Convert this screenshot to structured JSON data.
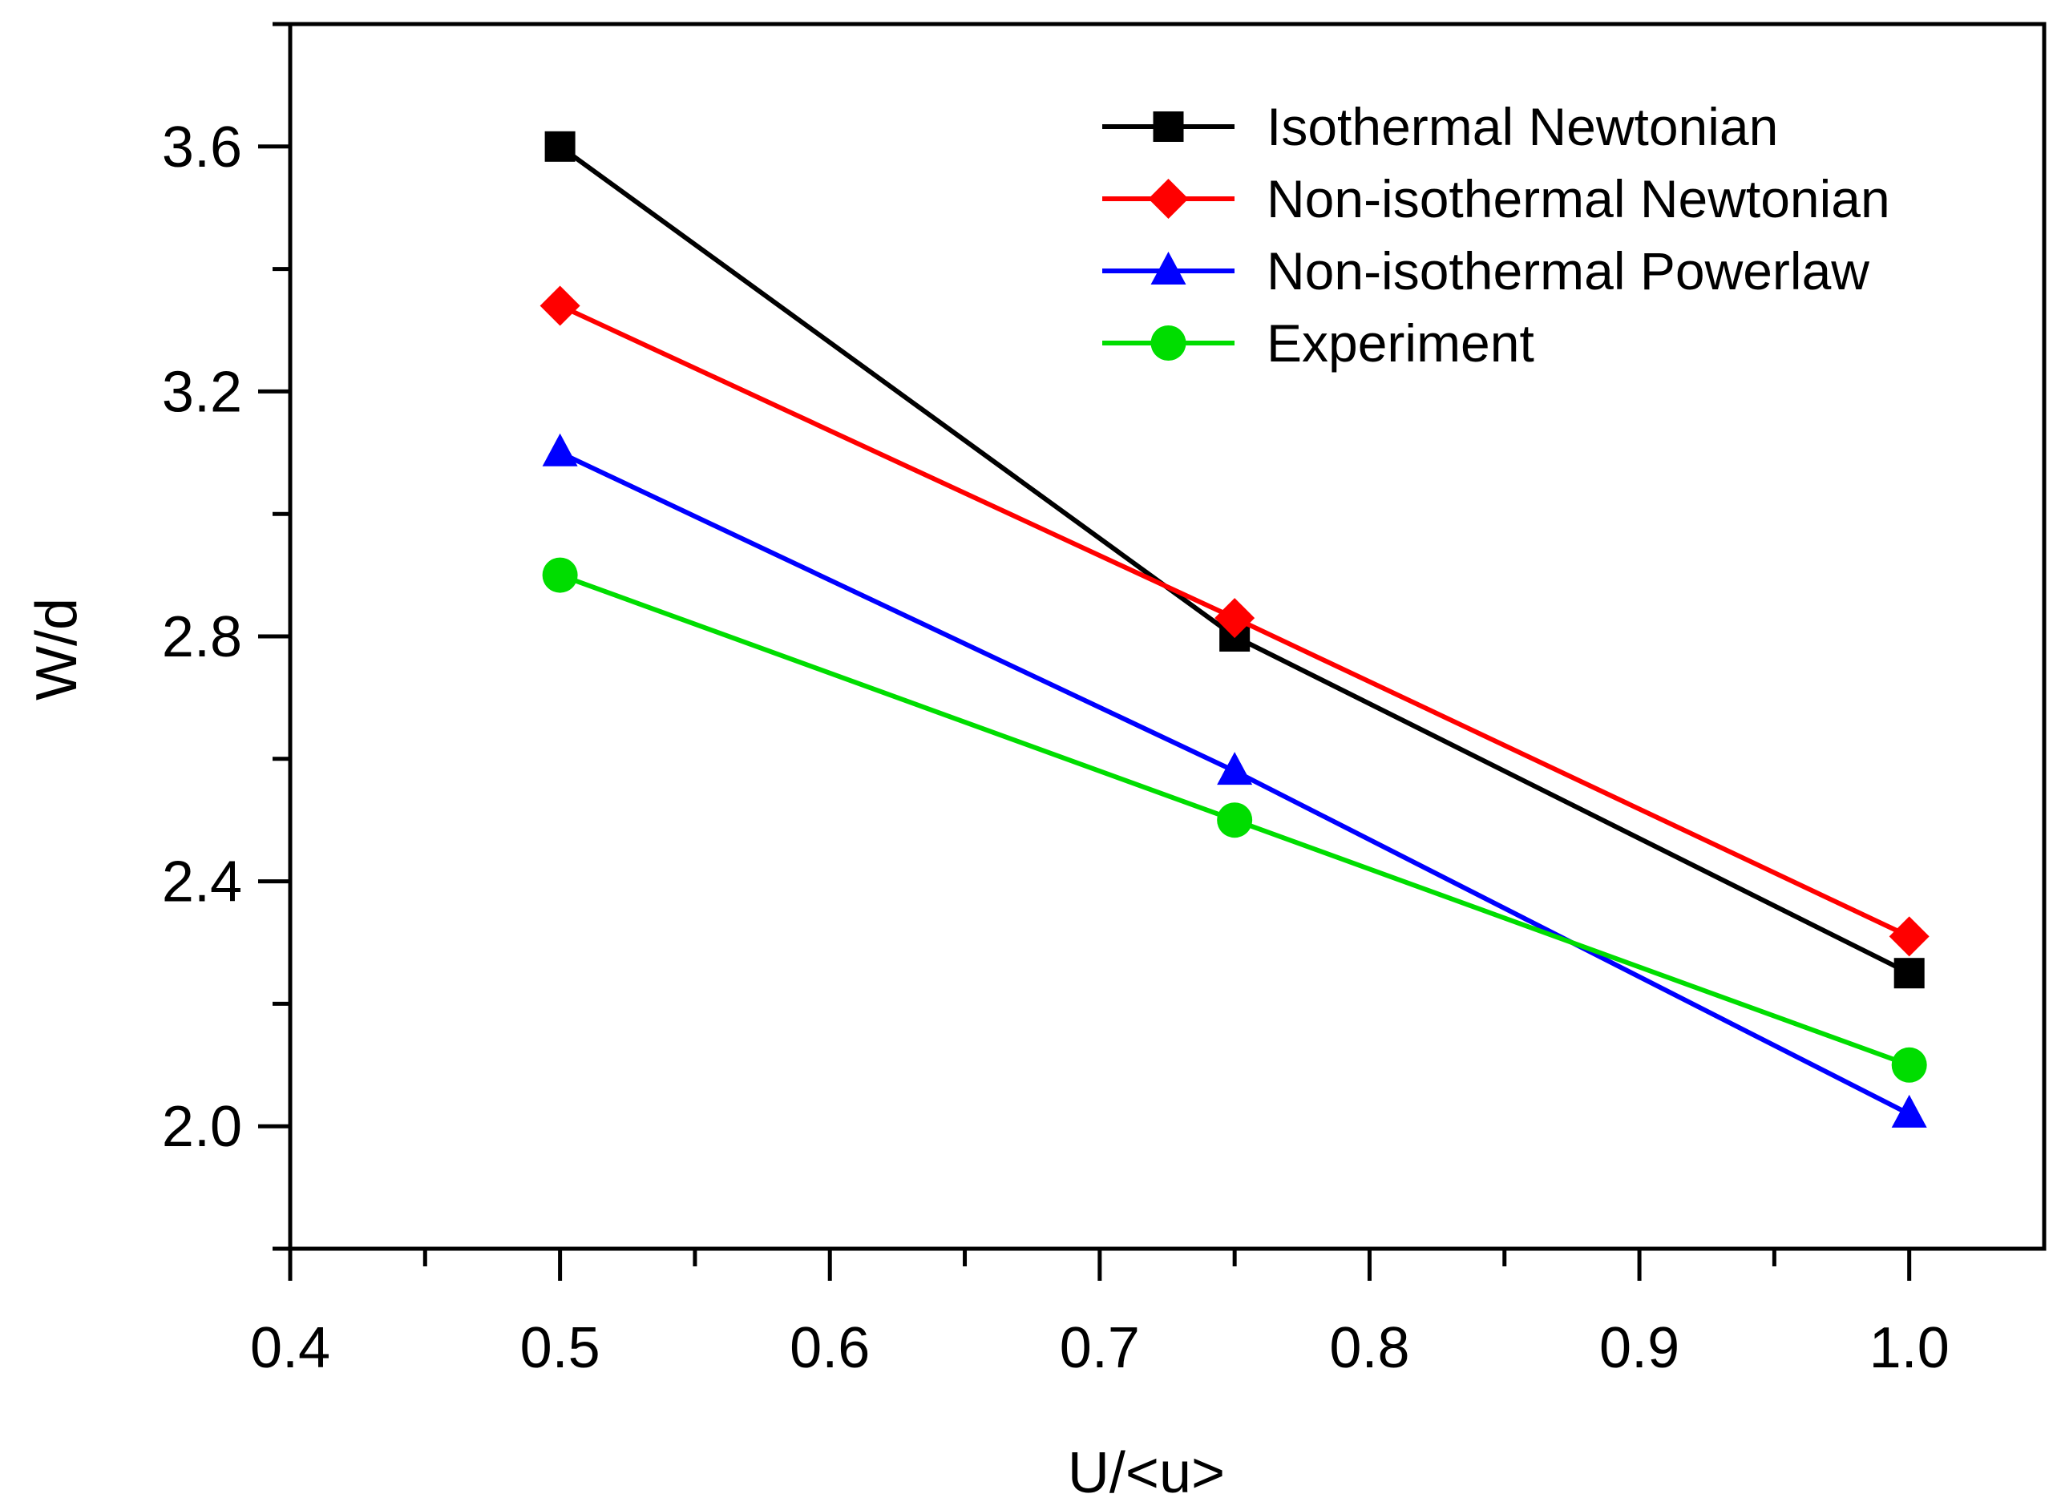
{
  "chart_data": {
    "type": "line",
    "title": "",
    "xlabel": "U/<u>",
    "ylabel": "W/d",
    "xlim": [
      0.4,
      1.05
    ],
    "ylim": [
      1.8,
      3.8
    ],
    "grid": false,
    "legend_position": "top-right",
    "x_ticks": [
      {
        "value": 0.4,
        "label": "0.4"
      },
      {
        "value": 0.5,
        "label": "0.5"
      },
      {
        "value": 0.6,
        "label": "0.6"
      },
      {
        "value": 0.7,
        "label": "0.7"
      },
      {
        "value": 0.8,
        "label": "0.8"
      },
      {
        "value": 0.9,
        "label": "0.9"
      },
      {
        "value": 1.0,
        "label": "1.0"
      }
    ],
    "y_ticks": [
      {
        "value": 2.0,
        "label": "2.0"
      },
      {
        "value": 2.4,
        "label": "2.4"
      },
      {
        "value": 2.8,
        "label": "2.8"
      },
      {
        "value": 3.2,
        "label": "3.2"
      },
      {
        "value": 3.6,
        "label": "3.6"
      }
    ],
    "series": [
      {
        "name": "Isothermal Newtonian",
        "color": "#000000",
        "marker": "square",
        "x": [
          0.5,
          0.75,
          1.0
        ],
        "values": [
          3.6,
          2.8,
          2.25
        ]
      },
      {
        "name": "Non-isothermal Newtonian",
        "color": "#ff0000",
        "marker": "diamond",
        "x": [
          0.5,
          0.75,
          1.0
        ],
        "values": [
          3.34,
          2.83,
          2.31
        ]
      },
      {
        "name": "Non-isothermal Powerlaw",
        "color": "#0000ff",
        "marker": "triangle",
        "x": [
          0.5,
          0.75,
          1.0
        ],
        "values": [
          3.1,
          2.58,
          2.02
        ]
      },
      {
        "name": "Experiment",
        "color": "#00dd00",
        "marker": "circle",
        "x": [
          0.5,
          0.75,
          1.0
        ],
        "values": [
          2.9,
          2.5,
          2.1
        ]
      }
    ]
  }
}
